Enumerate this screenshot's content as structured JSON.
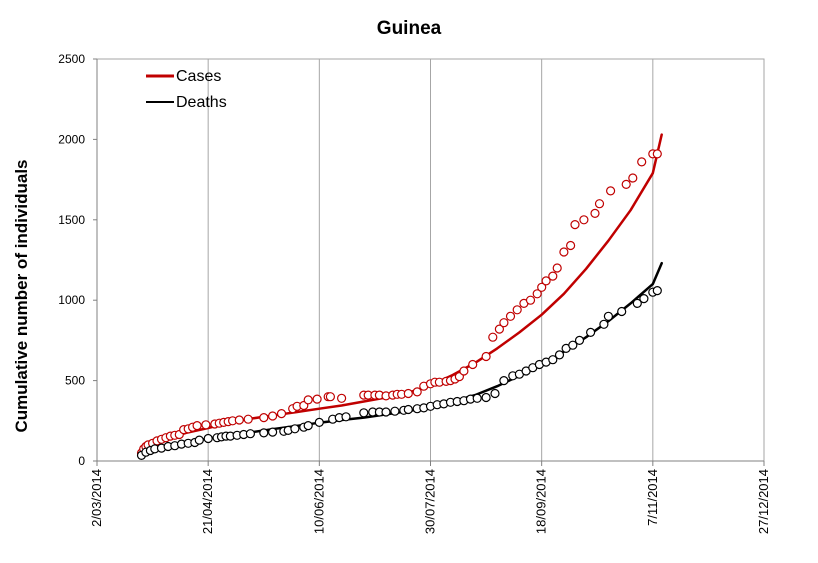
{
  "chart_data": {
    "type": "scatter",
    "title": "Guinea",
    "xlabel": "",
    "ylabel": "Cumulative number of individuals",
    "x_axis_type": "date",
    "xlim": [
      "2014-03-02",
      "2014-12-27"
    ],
    "ylim": [
      0,
      2500
    ],
    "x_ticks": [
      "2014-03-02",
      "2014-04-21",
      "2014-06-10",
      "2014-07-30",
      "2014-09-18",
      "2014-11-07",
      "2014-12-27"
    ],
    "x_tick_labels": [
      "2/03/2014",
      "21/04/2014",
      "10/06/2014",
      "30/07/2014",
      "18/09/2014",
      "7/11/2014",
      "27/12/2014"
    ],
    "y_ticks": [
      0,
      500,
      1000,
      1500,
      2000,
      2500
    ],
    "y_tick_labels": [
      "0",
      "500",
      "1000",
      "1500",
      "2000",
      "2500"
    ],
    "grid": "vertical",
    "legend_position": "top-left",
    "series": [
      {
        "name": "Cases",
        "color": "#c00000",
        "marker": "open-circle",
        "line": {
          "x": [
            "2014-03-22",
            "2014-04-01",
            "2014-04-11",
            "2014-04-21",
            "2014-05-01",
            "2014-05-11",
            "2014-05-21",
            "2014-05-31",
            "2014-06-10",
            "2014-06-20",
            "2014-06-30",
            "2014-07-10",
            "2014-07-20",
            "2014-07-30",
            "2014-08-09",
            "2014-08-19",
            "2014-08-29",
            "2014-09-08",
            "2014-09-18",
            "2014-09-28",
            "2014-10-08",
            "2014-10-18",
            "2014-10-28",
            "2014-11-07",
            "2014-11-11"
          ],
          "y": [
            40,
            130,
            175,
            205,
            240,
            265,
            285,
            305,
            325,
            345,
            370,
            395,
            425,
            470,
            535,
            610,
            700,
            800,
            910,
            1040,
            1195,
            1370,
            1560,
            1790,
            2030
          ]
        },
        "points": {
          "x": [
            "2014-03-22",
            "2014-03-23",
            "2014-03-24",
            "2014-03-25",
            "2014-03-27",
            "2014-03-29",
            "2014-03-31",
            "2014-04-02",
            "2014-04-04",
            "2014-04-06",
            "2014-04-08",
            "2014-04-10",
            "2014-04-12",
            "2014-04-14",
            "2014-04-16",
            "2014-04-20",
            "2014-04-24",
            "2014-04-26",
            "2014-04-28",
            "2014-04-30",
            "2014-05-02",
            "2014-05-05",
            "2014-05-09",
            "2014-05-16",
            "2014-05-20",
            "2014-05-24",
            "2014-05-29",
            "2014-05-31",
            "2014-06-03",
            "2014-06-05",
            "2014-06-09",
            "2014-06-14",
            "2014-06-15",
            "2014-06-20",
            "2014-06-30",
            "2014-07-02",
            "2014-07-05",
            "2014-07-07",
            "2014-07-10",
            "2014-07-13",
            "2014-07-15",
            "2014-07-17",
            "2014-07-20",
            "2014-07-24",
            "2014-07-27",
            "2014-07-30",
            "2014-08-01",
            "2014-08-03",
            "2014-08-06",
            "2014-08-08",
            "2014-08-10",
            "2014-08-12",
            "2014-08-14",
            "2014-08-18",
            "2014-08-24",
            "2014-08-27",
            "2014-08-30",
            "2014-09-01",
            "2014-09-04",
            "2014-09-07",
            "2014-09-10",
            "2014-09-13",
            "2014-09-16",
            "2014-09-18",
            "2014-09-20",
            "2014-09-23",
            "2014-09-25",
            "2014-09-28",
            "2014-10-01",
            "2014-10-03",
            "2014-10-07",
            "2014-10-12",
            "2014-10-14",
            "2014-10-19",
            "2014-10-26",
            "2014-10-29",
            "2014-11-02",
            "2014-11-07",
            "2014-11-09"
          ],
          "y": [
            50,
            75,
            90,
            100,
            110,
            125,
            135,
            145,
            155,
            160,
            165,
            195,
            200,
            210,
            220,
            225,
            230,
            235,
            240,
            245,
            250,
            255,
            260,
            270,
            280,
            295,
            325,
            340,
            345,
            380,
            385,
            400,
            400,
            390,
            410,
            410,
            410,
            410,
            405,
            410,
            415,
            415,
            420,
            430,
            465,
            480,
            490,
            490,
            495,
            500,
            510,
            525,
            560,
            600,
            650,
            770,
            820,
            860,
            900,
            940,
            980,
            1000,
            1040,
            1080,
            1120,
            1150,
            1200,
            1300,
            1340,
            1470,
            1500,
            1540,
            1600,
            1680,
            1720,
            1760,
            1860,
            1910,
            1910
          ]
        }
      },
      {
        "name": "Deaths",
        "color": "#000000",
        "marker": "open-circle",
        "line": {
          "x": [
            "2014-03-22",
            "2014-04-01",
            "2014-04-11",
            "2014-04-21",
            "2014-05-01",
            "2014-05-11",
            "2014-05-21",
            "2014-05-31",
            "2014-06-10",
            "2014-06-20",
            "2014-06-30",
            "2014-07-10",
            "2014-07-20",
            "2014-07-30",
            "2014-08-09",
            "2014-08-19",
            "2014-08-29",
            "2014-09-08",
            "2014-09-18",
            "2014-09-28",
            "2014-10-08",
            "2014-10-18",
            "2014-10-28",
            "2014-11-07",
            "2014-11-11"
          ],
          "y": [
            30,
            80,
            115,
            140,
            160,
            180,
            200,
            218,
            238,
            255,
            270,
            290,
            310,
            335,
            370,
            410,
            465,
            530,
            600,
            680,
            770,
            870,
            980,
            1100,
            1230
          ]
        },
        "points": {
          "x": [
            "2014-03-22",
            "2014-03-24",
            "2014-03-26",
            "2014-03-28",
            "2014-03-31",
            "2014-04-03",
            "2014-04-06",
            "2014-04-09",
            "2014-04-12",
            "2014-04-15",
            "2014-04-17",
            "2014-04-21",
            "2014-04-25",
            "2014-04-27",
            "2014-04-29",
            "2014-05-01",
            "2014-05-04",
            "2014-05-07",
            "2014-05-10",
            "2014-05-16",
            "2014-05-20",
            "2014-05-25",
            "2014-05-27",
            "2014-05-30",
            "2014-06-03",
            "2014-06-05",
            "2014-06-10",
            "2014-06-16",
            "2014-06-19",
            "2014-06-22",
            "2014-06-30",
            "2014-07-04",
            "2014-07-07",
            "2014-07-10",
            "2014-07-14",
            "2014-07-18",
            "2014-07-20",
            "2014-07-24",
            "2014-07-27",
            "2014-07-30",
            "2014-08-02",
            "2014-08-05",
            "2014-08-08",
            "2014-08-11",
            "2014-08-14",
            "2014-08-17",
            "2014-08-20",
            "2014-08-24",
            "2014-08-28",
            "2014-09-01",
            "2014-09-05",
            "2014-09-08",
            "2014-09-11",
            "2014-09-14",
            "2014-09-17",
            "2014-09-20",
            "2014-09-23",
            "2014-09-26",
            "2014-09-29",
            "2014-10-02",
            "2014-10-05",
            "2014-10-10",
            "2014-10-16",
            "2014-10-18",
            "2014-10-24",
            "2014-10-31",
            "2014-11-03",
            "2014-11-07",
            "2014-11-09"
          ],
          "y": [
            35,
            55,
            65,
            75,
            80,
            90,
            95,
            105,
            110,
            115,
            130,
            140,
            145,
            150,
            155,
            155,
            160,
            165,
            170,
            175,
            180,
            185,
            190,
            200,
            210,
            220,
            240,
            260,
            270,
            275,
            300,
            305,
            305,
            305,
            310,
            315,
            320,
            325,
            330,
            340,
            350,
            355,
            365,
            370,
            375,
            385,
            390,
            395,
            420,
            500,
            530,
            540,
            560,
            580,
            600,
            615,
            630,
            660,
            700,
            720,
            750,
            800,
            850,
            900,
            930,
            980,
            1010,
            1050,
            1060
          ]
        }
      }
    ]
  }
}
